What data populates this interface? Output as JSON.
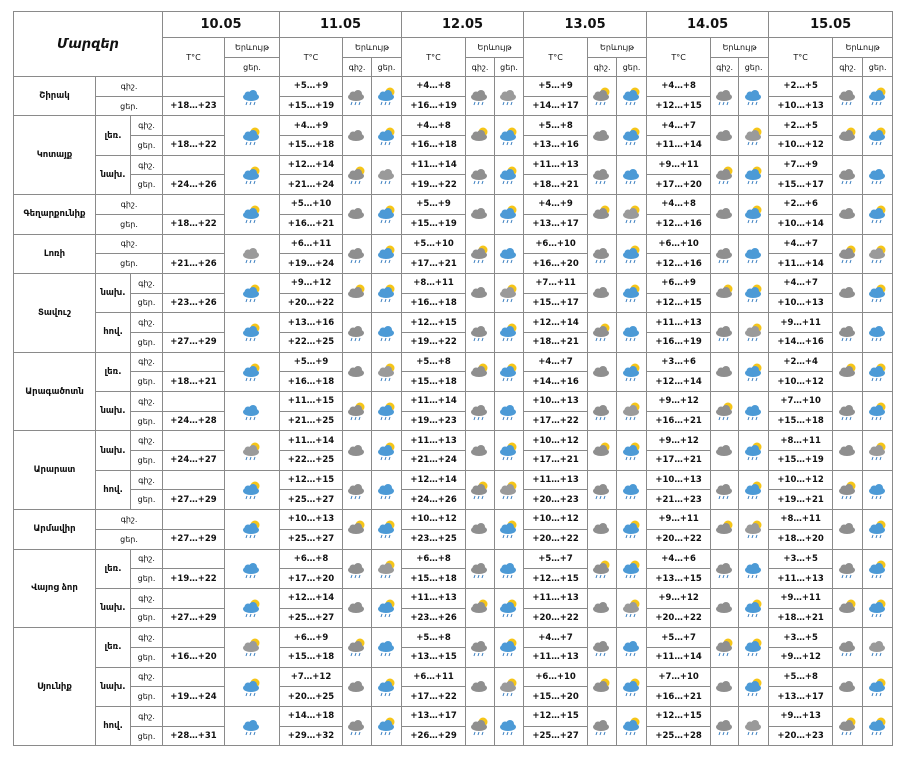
{
  "header": {
    "title": "Մարզեր",
    "dates": [
      "10.05",
      "11.05",
      "12.05",
      "13.05",
      "14.05",
      "15.05"
    ],
    "temp": "T°C",
    "phenomenon": "Երևույթ",
    "night": "գիշ.",
    "day": "ցեր."
  },
  "regions": [
    {
      "name": "Շիրակ",
      "zones": [
        {
          "first_day": "+18…+23",
          "night": [
            "+5…+9",
            "+4…+8",
            "+5…+9",
            "+4…+8",
            "+2…+5"
          ],
          "day": [
            "+15…+19",
            "+16…+19",
            "+14…+17",
            "+12…+15",
            "+10…+13"
          ]
        }
      ]
    },
    {
      "name": "Կոտայք",
      "zones": [
        {
          "zone": "լեռ.",
          "first_day": "+18…+22",
          "night": [
            "+4…+9",
            "+4…+8",
            "+5…+8",
            "+4…+7",
            "+2…+5"
          ],
          "day": [
            "+15…+18",
            "+16…+18",
            "+13…+16",
            "+11…+14",
            "+10…+12"
          ]
        },
        {
          "zone": "նախ.",
          "first_day": "+24…+26",
          "night": [
            "+12…+14",
            "+11…+14",
            "+11…+13",
            "+9…+11",
            "+7…+9"
          ],
          "day": [
            "+21…+24",
            "+19…+22",
            "+18…+21",
            "+17…+20",
            "+15…+17"
          ]
        }
      ]
    },
    {
      "name": "Գեղարքունիք",
      "zones": [
        {
          "first_day": "+18…+22",
          "night": [
            "+5…+10",
            "+5…+9",
            "+4…+9",
            "+4…+8",
            "+2…+6"
          ],
          "day": [
            "+16…+21",
            "+15…+19",
            "+13…+17",
            "+12…+16",
            "+10…+14"
          ]
        }
      ]
    },
    {
      "name": "Լոռի",
      "zones": [
        {
          "first_day": "+21…+26",
          "night": [
            "+6…+11",
            "+5…+10",
            "+6…+10",
            "+6…+10",
            "+4…+7"
          ],
          "day": [
            "+19…+24",
            "+17…+21",
            "+16…+20",
            "+12…+16",
            "+11…+14"
          ]
        }
      ]
    },
    {
      "name": "Տավուշ",
      "zones": [
        {
          "zone": "նախ.",
          "first_day": "+23…+26",
          "night": [
            "+9…+12",
            "+8…+11",
            "+7…+11",
            "+6…+9",
            "+4…+7"
          ],
          "day": [
            "+20…+22",
            "+16…+18",
            "+15…+17",
            "+12…+15",
            "+10…+13"
          ]
        },
        {
          "zone": "հով.",
          "first_day": "+27…+29",
          "night": [
            "+13…+16",
            "+12…+15",
            "+12…+14",
            "+11…+13",
            "+9…+11"
          ],
          "day": [
            "+22…+25",
            "+19…+22",
            "+18…+21",
            "+16…+19",
            "+14…+16"
          ]
        }
      ]
    },
    {
      "name": "Արագածոտն",
      "zones": [
        {
          "zone": "լեռ.",
          "first_day": "+18…+21",
          "night": [
            "+5…+9",
            "+5…+8",
            "+4…+7",
            "+3…+6",
            "+2…+4"
          ],
          "day": [
            "+16…+18",
            "+15…+18",
            "+14…+16",
            "+12…+14",
            "+10…+12"
          ]
        },
        {
          "zone": "նախ.",
          "first_day": "+24…+28",
          "night": [
            "+11…+15",
            "+11…+14",
            "+10…+13",
            "+9…+12",
            "+7…+10"
          ],
          "day": [
            "+21…+25",
            "+19…+23",
            "+17…+22",
            "+16…+21",
            "+15…+18"
          ]
        }
      ]
    },
    {
      "name": "Արարատ",
      "zones": [
        {
          "zone": "նախ.",
          "first_day": "+24…+27",
          "night": [
            "+11…+14",
            "+11…+13",
            "+10…+12",
            "+9…+12",
            "+8…+11"
          ],
          "day": [
            "+22…+25",
            "+21…+24",
            "+17…+21",
            "+17…+21",
            "+15…+19"
          ]
        },
        {
          "zone": "հով.",
          "first_day": "+27…+29",
          "night": [
            "+12…+15",
            "+12…+14",
            "+11…+13",
            "+10…+13",
            "+10…+12"
          ],
          "day": [
            "+25…+27",
            "+24…+26",
            "+20…+23",
            "+21…+23",
            "+19…+21"
          ]
        }
      ]
    },
    {
      "name": "Արմավիր",
      "zones": [
        {
          "first_day": "+27…+29",
          "night": [
            "+10…+13",
            "+10…+12",
            "+10…+12",
            "+9…+11",
            "+8…+11"
          ],
          "day": [
            "+25…+27",
            "+23…+25",
            "+20…+22",
            "+20…+22",
            "+18…+20"
          ]
        }
      ]
    },
    {
      "name": "Վայոց ձոր",
      "zones": [
        {
          "zone": "լեռ.",
          "first_day": "+19…+22",
          "night": [
            "+6…+8",
            "+6…+8",
            "+5…+7",
            "+4…+6",
            "+3…+5"
          ],
          "day": [
            "+17…+20",
            "+15…+18",
            "+12…+15",
            "+13…+15",
            "+11…+13"
          ]
        },
        {
          "zone": "նախ.",
          "first_day": "+27…+29",
          "night": [
            "+12…+14",
            "+11…+13",
            "+11…+13",
            "+9…+12",
            "+9…+11"
          ],
          "day": [
            "+25…+27",
            "+23…+26",
            "+20…+22",
            "+20…+22",
            "+18…+21"
          ]
        }
      ]
    },
    {
      "name": "Սյունիք",
      "zones": [
        {
          "zone": "լեռ.",
          "first_day": "+16…+20",
          "night": [
            "+6…+9",
            "+5…+8",
            "+4…+7",
            "+5…+7",
            "+3…+5"
          ],
          "day": [
            "+15…+18",
            "+13…+15",
            "+11…+13",
            "+11…+14",
            "+9…+12"
          ]
        },
        {
          "zone": "նախ.",
          "first_day": "+19…+24",
          "night": [
            "+7…+12",
            "+6…+11",
            "+6…+10",
            "+7…+10",
            "+5…+8"
          ],
          "day": [
            "+20…+25",
            "+17…+22",
            "+15…+20",
            "+16…+21",
            "+13…+17"
          ]
        },
        {
          "zone": "հով.",
          "first_day": "+28…+31",
          "night": [
            "+14…+18",
            "+13…+17",
            "+12…+15",
            "+12…+15",
            "+9…+13"
          ],
          "day": [
            "+29…+32",
            "+26…+29",
            "+25…+27",
            "+25…+28",
            "+20…+23"
          ]
        }
      ]
    }
  ]
}
